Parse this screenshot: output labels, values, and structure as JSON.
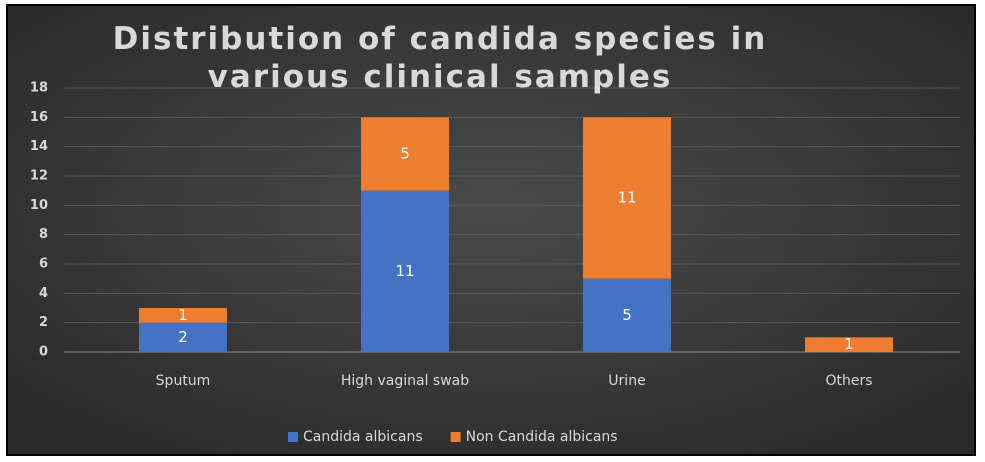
{
  "chart_data": {
    "type": "stacked_bar",
    "title": "Distribution of candida species in various clinical samples",
    "categories": [
      "Sputum",
      "High vaginal swab",
      "Urine",
      "Others"
    ],
    "series": [
      {
        "name": "Candida albicans",
        "color": "#4472c4",
        "values": [
          2,
          11,
          5,
          0
        ]
      },
      {
        "name": "Non Candida albicans",
        "color": "#ed7d31",
        "values": [
          1,
          5,
          11,
          1
        ]
      }
    ],
    "ylim": [
      0,
      18
    ],
    "yticks": [
      0,
      2,
      4,
      6,
      8,
      10,
      12,
      14,
      16,
      18
    ],
    "grid": true,
    "legend": "bottom"
  }
}
